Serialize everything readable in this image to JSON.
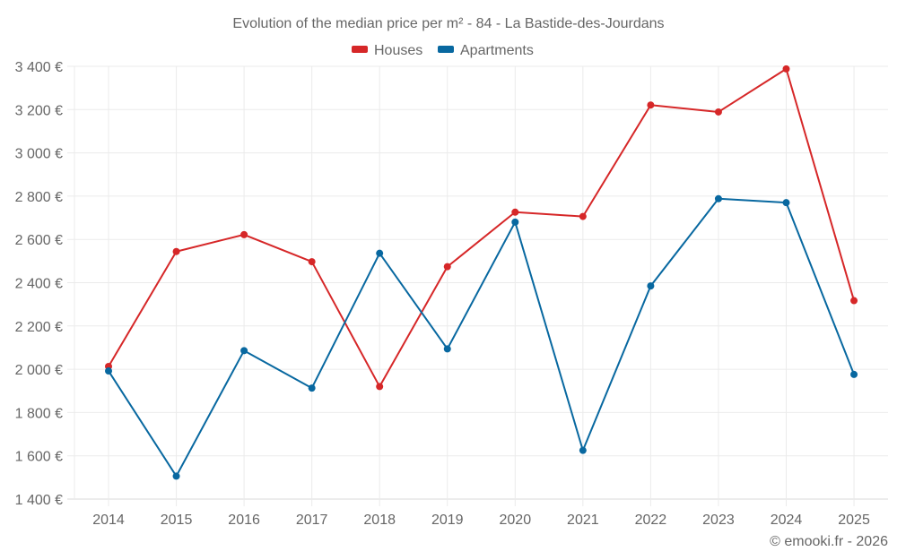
{
  "chart_data": {
    "type": "line",
    "title": "Evolution of the median price per m² - 84 - La Bastide-des-Jourdans",
    "xlabel": "",
    "ylabel": "",
    "x": [
      "2014",
      "2015",
      "2016",
      "2017",
      "2018",
      "2019",
      "2020",
      "2021",
      "2022",
      "2023",
      "2024",
      "2025"
    ],
    "series": [
      {
        "name": "Houses",
        "color": "#d62728",
        "values": [
          2013,
          2544,
          2622,
          2497,
          1920,
          2474,
          2726,
          2706,
          3221,
          3189,
          3388,
          2317
        ]
      },
      {
        "name": "Apartments",
        "color": "#0868a0",
        "values": [
          1992,
          1506,
          2086,
          1913,
          2536,
          2094,
          2680,
          1625,
          2385,
          2788,
          2770,
          1976
        ]
      }
    ],
    "ylim": [
      1400,
      3400
    ],
    "yticks": [
      1400,
      1600,
      1800,
      2000,
      2200,
      2400,
      2600,
      2800,
      3000,
      3200,
      3400
    ],
    "ytick_labels": [
      "1 400 €",
      "1 600 €",
      "1 800 €",
      "2 000 €",
      "2 200 €",
      "2 400 €",
      "2 600 €",
      "2 800 €",
      "3 000 €",
      "3 200 €",
      "3 400 €"
    ],
    "grid": true,
    "legend_position": "top-center"
  },
  "credit": "© emooki.fr - 2026"
}
